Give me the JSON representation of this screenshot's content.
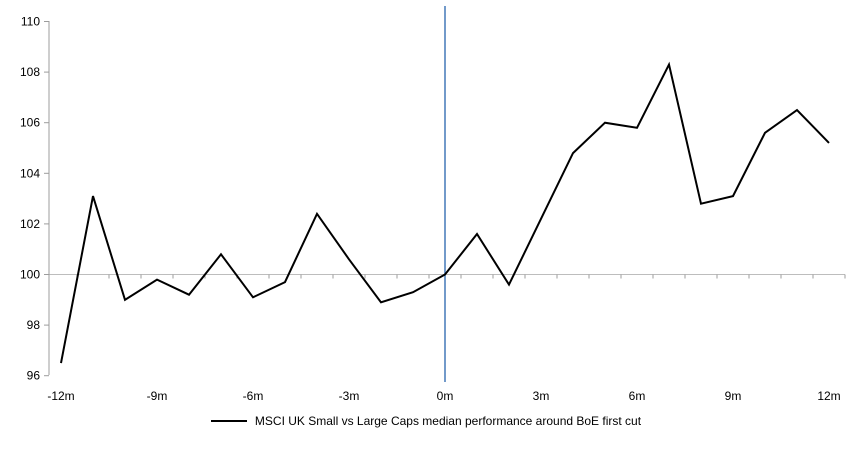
{
  "chart_data": {
    "type": "line",
    "title": "",
    "xlabel": "",
    "ylabel": "",
    "x": [
      -12,
      -11,
      -10,
      -9,
      -8,
      -7,
      -6,
      -5,
      -4,
      -3,
      -2,
      -1,
      0,
      1,
      2,
      3,
      4,
      5,
      6,
      7,
      8,
      9,
      10,
      11,
      12
    ],
    "series": [
      {
        "name": "MSCI UK Small vs Large Caps median performance around BoE first cut",
        "values": [
          96.5,
          103.1,
          99.0,
          99.8,
          99.2,
          100.8,
          99.1,
          99.7,
          102.4,
          100.6,
          98.9,
          99.3,
          100.0,
          101.6,
          99.6,
          102.2,
          104.8,
          106.0,
          105.8,
          108.3,
          102.8,
          103.1,
          105.6,
          106.5,
          105.2
        ]
      }
    ],
    "x_tick_labels": [
      "-12m",
      "-9m",
      "-6m",
      "-3m",
      "0m",
      "3m",
      "6m",
      "9m",
      "12m"
    ],
    "x_tick_positions": [
      -12,
      -9,
      -6,
      -3,
      0,
      3,
      6,
      9,
      12
    ],
    "y_ticks": [
      96,
      98,
      100,
      102,
      104,
      106,
      108,
      110
    ],
    "ylim": [
      96,
      110
    ],
    "xlim": [
      -12.5,
      12.5
    ],
    "baseline_value": 100,
    "event_line_x": 0,
    "grid": "horizontal baseline at 100 only",
    "legend_position": "bottom-center",
    "colors": {
      "series_line": "#000000",
      "event_line": "#4f81bd",
      "baseline": "#bdbdbd",
      "axis": "#9c9c9c",
      "text": "#000000"
    }
  }
}
